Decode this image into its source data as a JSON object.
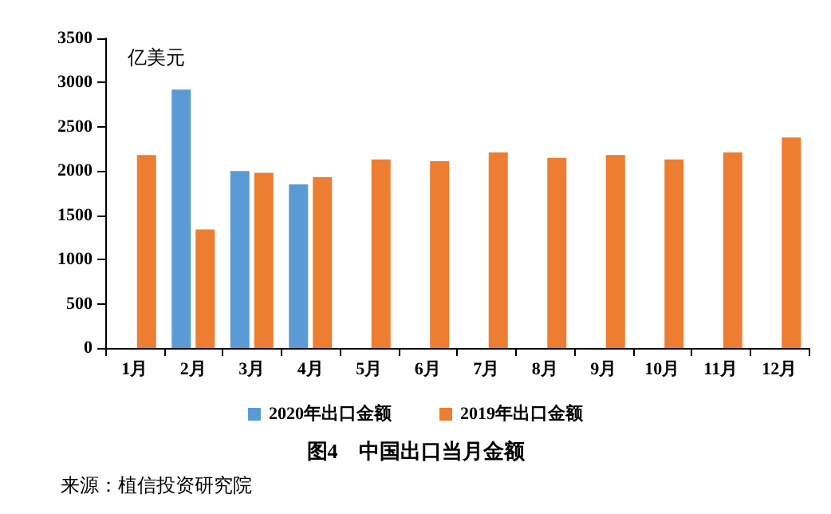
{
  "chart_data": {
    "type": "bar",
    "title": "图4　中国出口当月金额",
    "ylabel": "亿美元",
    "categories": [
      "1月",
      "2月",
      "3月",
      "4月",
      "5月",
      "6月",
      "7月",
      "8月",
      "9月",
      "10月",
      "11月",
      "12月"
    ],
    "series": [
      {
        "name": "2020年出口金额",
        "color": "#5b9bd5",
        "values": [
          null,
          2920,
          2000,
          1850,
          null,
          null,
          null,
          null,
          null,
          null,
          null,
          null
        ]
      },
      {
        "name": "2019年出口金额",
        "color": "#ed7d31",
        "values": [
          2180,
          1340,
          1980,
          1930,
          2130,
          2110,
          2210,
          2150,
          2180,
          2130,
          2210,
          2380
        ]
      }
    ],
    "ylim": [
      0,
      3500
    ],
    "yticks": [
      0,
      500,
      1000,
      1500,
      2000,
      2500,
      3000,
      3500
    ],
    "grid": false,
    "legend": "bottom",
    "annotations": [
      "来源：植信投资研究院"
    ]
  }
}
